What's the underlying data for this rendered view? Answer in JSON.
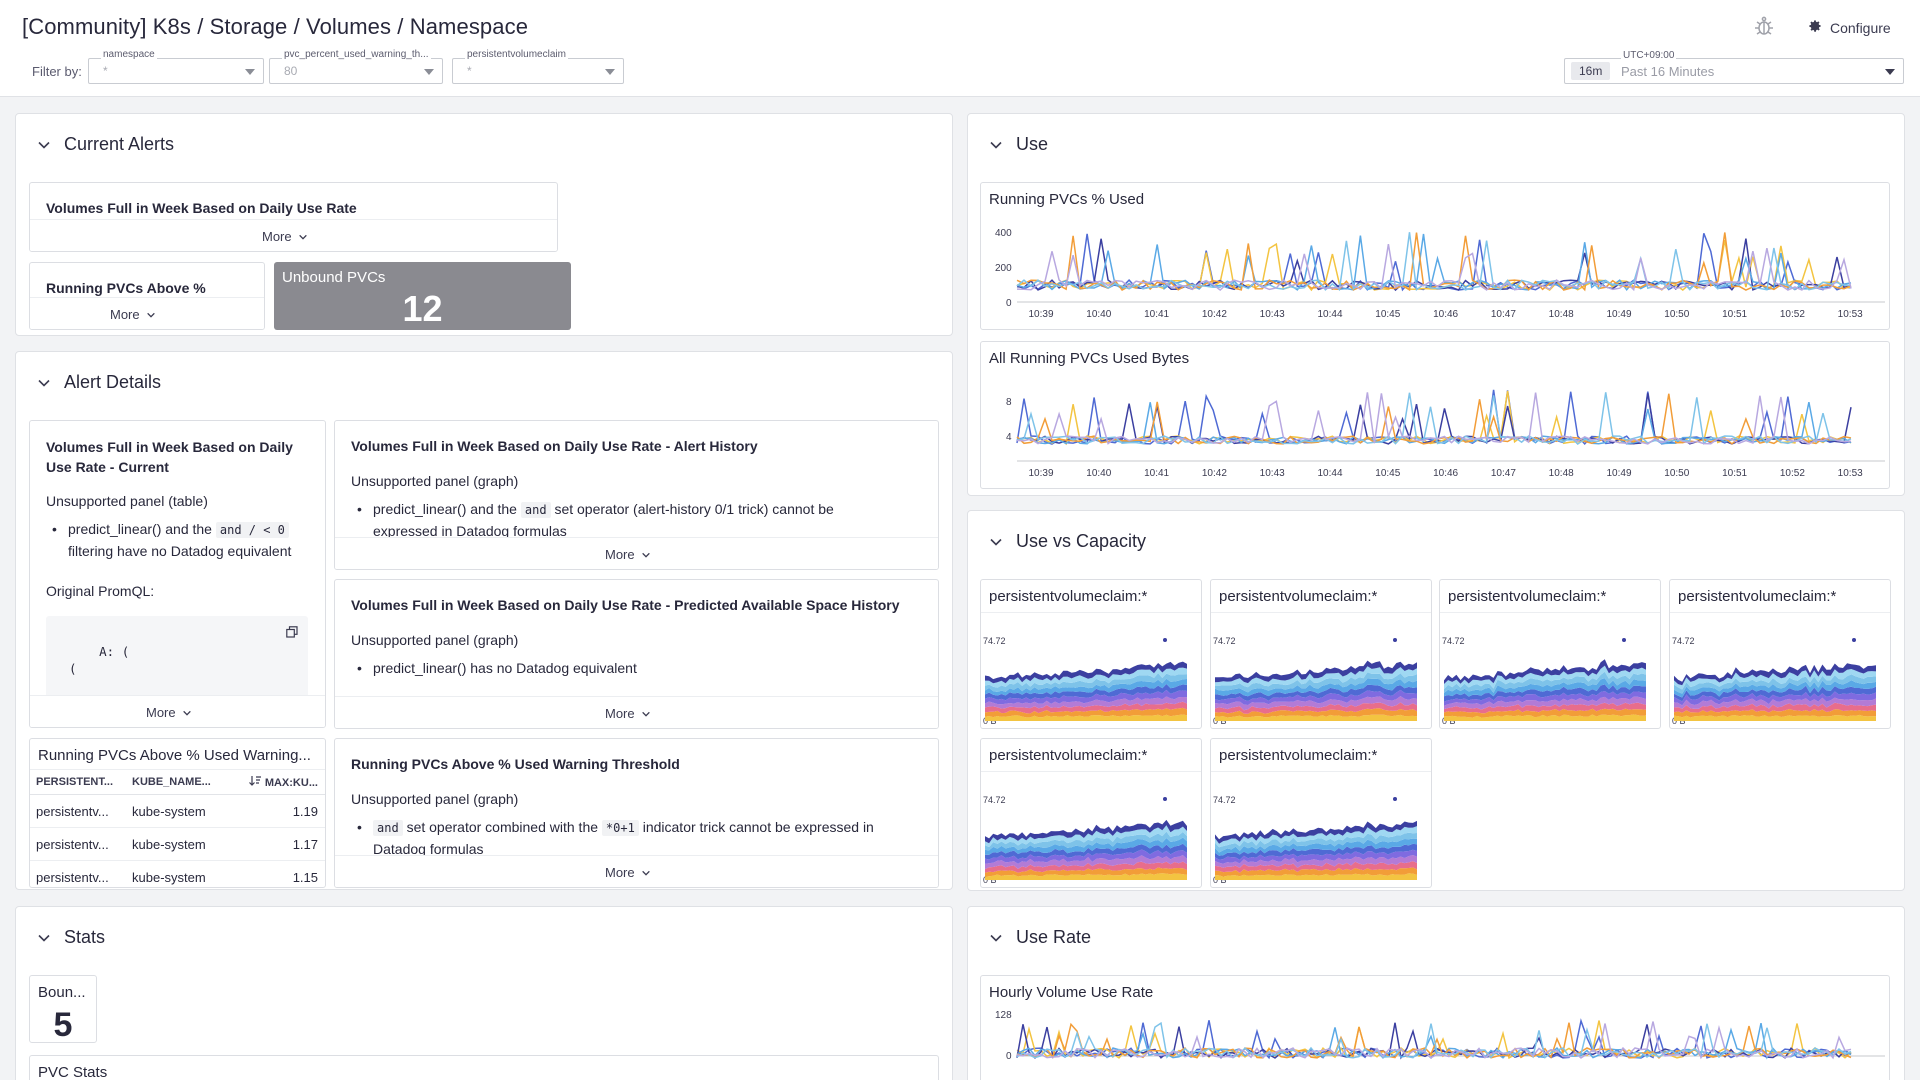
{
  "header": {
    "title": "[Community] K8s / Storage / Volumes / Namespace",
    "configure_label": "Configure",
    "filter_by_label": "Filter by:",
    "filters": [
      {
        "label": "namespace",
        "value": "*"
      },
      {
        "label": "pvc_percent_used_warning_th...",
        "value": "80"
      },
      {
        "label": "persistentvolumeclaim",
        "value": "*"
      }
    ],
    "time": {
      "timezone": "UTC+09:00",
      "chip": "16m",
      "label": "Past 16 Minutes"
    }
  },
  "groups": {
    "current_alerts": {
      "title": "Current Alerts",
      "widgets": {
        "volumes_full": {
          "title": "Volumes Full in Week Based on Daily Use Rate",
          "more": "More"
        },
        "running_above": {
          "title": "Running PVCs Above %",
          "more": "More"
        },
        "unbound": {
          "label": "Unbound PVCs",
          "value": "12"
        }
      }
    },
    "alert_details": {
      "title": "Alert Details",
      "current": {
        "title": "Volumes Full in Week Based on Daily Use Rate - Current",
        "unsupported": "Unsupported panel (table)",
        "bullet_a": "predict_linear() and the",
        "bullet_code": "and / < 0",
        "bullet_b": "filtering have no Datadog equivalent",
        "promql_label": "Original PromQL:",
        "promql": "A: (\n  (\n\n(kubelet_volume_stats_availa",
        "more": "More"
      },
      "history": {
        "title": "Volumes Full in Week Based on Daily Use Rate - Alert History",
        "unsupported": "Unsupported panel (graph)",
        "bullet_a": "predict_linear() and the",
        "bullet_code": "and",
        "bullet_b": "set operator (alert-history 0/1 trick) cannot be",
        "bullet_c": "expressed in Datadog formulas",
        "more": "More"
      },
      "predicted": {
        "title": "Volumes Full in Week Based on Daily Use Rate - Predicted Available Space History",
        "unsupported": "Unsupported panel (graph)",
        "bullet": "predict_linear() has no Datadog equivalent",
        "more": "More"
      },
      "warning": {
        "title": "Running PVCs Above % Used Warning Threshold",
        "unsupported": "Unsupported panel (graph)",
        "bullet_code1": "and",
        "bullet_a": "set operator combined with the",
        "bullet_code2": "*0+1",
        "bullet_b": "indicator trick cannot be expressed in",
        "bullet_c": "Datadog formulas",
        "more": "More"
      },
      "table": {
        "title": "Running PVCs Above % Used Warning...",
        "columns": [
          "PERSISTENT...",
          "KUBE_NAME...",
          "MAX:KU..."
        ],
        "rows": [
          [
            "persistentv...",
            "kube-system",
            "1.19"
          ],
          [
            "persistentv...",
            "kube-system",
            "1.17"
          ],
          [
            "persistentv...",
            "kube-system",
            "1.15"
          ]
        ]
      }
    },
    "stats": {
      "title": "Stats",
      "bound": {
        "label": "Boun...",
        "value": "5"
      },
      "pvc_stats_title": "PVC Stats"
    },
    "use": {
      "title": "Use",
      "running_pct": {
        "title": "Running PVCs % Used",
        "y_ticks": [
          "400",
          "200",
          "0"
        ]
      },
      "used_bytes": {
        "title": "All Running PVCs Used Bytes",
        "y_ticks": [
          "8",
          "4"
        ]
      },
      "x_ticks": [
        "10:39",
        "10:40",
        "10:41",
        "10:42",
        "10:43",
        "10:44",
        "10:45",
        "10:46",
        "10:47",
        "10:48",
        "10:49",
        "10:50",
        "10:51",
        "10:52",
        "10:53"
      ]
    },
    "use_vs_capacity": {
      "title": "Use vs Capacity",
      "panels": [
        {
          "title": "persistentvolumeclaim:*",
          "top": "74.72",
          "bottom": "0 B"
        },
        {
          "title": "persistentvolumeclaim:*",
          "top": "74.72",
          "bottom": "0 B"
        },
        {
          "title": "persistentvolumeclaim:*",
          "top": "74.72",
          "bottom": "0 B"
        },
        {
          "title": "persistentvolumeclaim:*",
          "top": "74.72",
          "bottom": "0 B"
        },
        {
          "title": "persistentvolumeclaim:*",
          "top": "74.72",
          "bottom": "0 B"
        },
        {
          "title": "persistentvolumeclaim:*",
          "top": "74.72",
          "bottom": "0 B"
        }
      ]
    },
    "use_rate": {
      "title": "Use Rate",
      "hourly": {
        "title": "Hourly Volume Use Rate",
        "y_ticks": [
          "128",
          "0"
        ]
      }
    }
  },
  "colors": {
    "series": [
      "#4f6ad4",
      "#f3c441",
      "#3b3fa0",
      "#5aa9e6",
      "#f29d38",
      "#7ec3e9",
      "#b8a8e0"
    ],
    "unbound_bg": "#8a8a90"
  }
}
